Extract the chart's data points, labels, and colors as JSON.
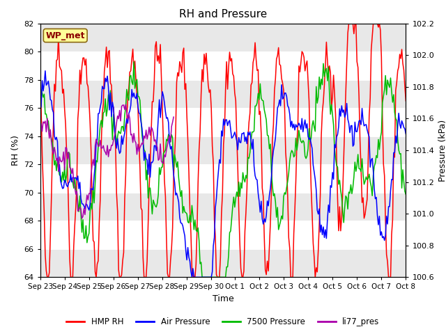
{
  "title": "RH and Pressure",
  "xlabel": "Time",
  "ylabel_left": "RH (%)",
  "ylabel_right": "Pressure (kPa)",
  "ylim_left": [
    64,
    82
  ],
  "ylim_right": [
    100.6,
    102.2
  ],
  "yticks_left": [
    64,
    66,
    68,
    70,
    72,
    74,
    76,
    78,
    80,
    82
  ],
  "yticks_right": [
    100.6,
    100.8,
    101.0,
    101.2,
    101.4,
    101.6,
    101.8,
    102.0,
    102.2
  ],
  "xtick_labels": [
    "Sep 23",
    "Sep 24",
    "Sep 25",
    "Sep 26",
    "Sep 27",
    "Sep 28",
    "Sep 29",
    "Sep 30",
    "Oct 1",
    "Oct 2",
    "Oct 3",
    "Oct 4",
    "Oct 5",
    "Oct 6",
    "Oct 7",
    "Oct 8"
  ],
  "box_label": "WP_met",
  "box_color": "#8B0000",
  "box_bg": "#FFFF99",
  "box_edge": "#8B6914",
  "legend_labels": [
    "HMP RH",
    "Air Pressure",
    "7500 Pressure",
    "li77_pres"
  ],
  "hmp_rh_color": "#FF0000",
  "air_pressure_color": "#0000FF",
  "pressure_7500_color": "#00BB00",
  "li77_pres_color": "#AA00AA",
  "band_color_light": "#e8e8e8",
  "band_color_dark": "#d0d0d0",
  "title_fontsize": 11,
  "axis_label_fontsize": 9,
  "tick_fontsize": 8,
  "xtick_fontsize": 7.5
}
